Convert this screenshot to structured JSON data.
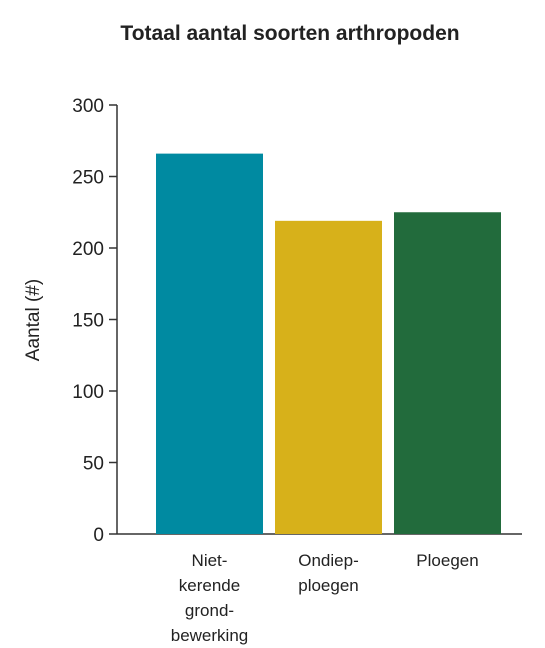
{
  "chart_data": {
    "type": "bar",
    "title": "Totaal aantal soorten arthropoden",
    "xlabel": "",
    "ylabel": "Aantal (#)",
    "ylim": [
      0,
      300
    ],
    "yticks": [
      0,
      50,
      100,
      150,
      200,
      250,
      300
    ],
    "grid": false,
    "legend": "none",
    "categories": [
      "Niet-kerende grond-bewerking",
      "Ondiep-ploegen",
      "Ploegen"
    ],
    "category_label_lines": [
      [
        "Niet-",
        "kerende",
        "grond-",
        "bewerking"
      ],
      [
        "Ondiep-",
        "ploegen"
      ],
      [
        "Ploegen"
      ]
    ],
    "values": [
      266,
      219,
      225
    ],
    "colors": [
      "#008aa1",
      "#d7b11a",
      "#226b3c"
    ]
  }
}
